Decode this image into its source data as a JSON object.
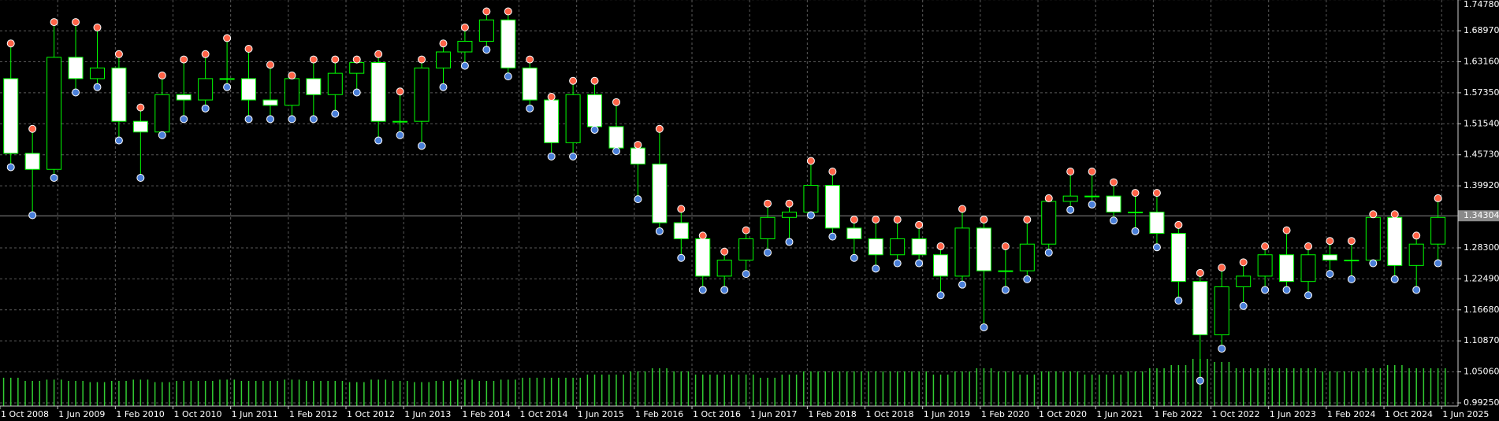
{
  "chart_data": {
    "type": "candlestick",
    "ylim": [
      0.9866,
      1.7473
    ],
    "yticks": [
      {
        "value": 1.7478,
        "label": "1.74780"
      },
      {
        "value": 1.6897,
        "label": "1.68970"
      },
      {
        "value": 1.6316,
        "label": "1.63160"
      },
      {
        "value": 1.5735,
        "label": "1.57350"
      },
      {
        "value": 1.5154,
        "label": "1.51540"
      },
      {
        "value": 1.4573,
        "label": "1.45730"
      },
      {
        "value": 1.3992,
        "label": "1.39920"
      },
      {
        "value": 1.283,
        "label": "1.28300"
      },
      {
        "value": 1.2249,
        "label": "1.22490"
      },
      {
        "value": 1.1668,
        "label": "1.16680"
      },
      {
        "value": 1.1087,
        "label": "1.10870"
      },
      {
        "value": 1.0506,
        "label": "1.05060"
      },
      {
        "value": 0.9925,
        "label": "0.99250"
      }
    ],
    "current_price": {
      "value": 1.34304,
      "label": "1.34304"
    },
    "xticks": [
      "1 Oct 2008",
      "1 Jun 2009",
      "1 Feb 2010",
      "1 Oct 2010",
      "1 Jun 2011",
      "1 Feb 2012",
      "1 Oct 2012",
      "1 Jun 2013",
      "1 Feb 2014",
      "1 Oct 2014",
      "1 Jun 2015",
      "1 Feb 2016",
      "1 Oct 2016",
      "1 Jun 2017",
      "1 Feb 2018",
      "1 Oct 2018",
      "1 Jun 2019",
      "1 Feb 2020",
      "1 Oct 2020",
      "1 Jun 2021",
      "1 Feb 2022",
      "1 Oct 2022",
      "1 Jun 2023",
      "1 Feb 2024",
      "1 Oct 2024",
      "1 Jun 2025"
    ],
    "grid": true,
    "x": [
      "1 Oct 2008",
      "1 Jan 2009",
      "1 Apr 2009",
      "1 Jul 2009",
      "1 Oct 2009",
      "1 Jan 2010",
      "1 Apr 2010",
      "1 Jul 2010",
      "1 Oct 2010",
      "1 Jan 2011",
      "1 Apr 2011",
      "1 Jul 2011",
      "1 Oct 2011",
      "1 Jan 2012",
      "1 Apr 2012",
      "1 Jul 2012",
      "1 Oct 2012",
      "1 Jan 2013",
      "1 Apr 2013",
      "1 Jul 2013",
      "1 Oct 2013",
      "1 Jan 2014",
      "1 Apr 2014",
      "1 Jul 2014",
      "1 Oct 2014",
      "1 Jan 2015",
      "1 Apr 2015",
      "1 Jul 2015",
      "1 Oct 2015",
      "1 Jan 2016",
      "1 Apr 2016",
      "1 Jul 2016",
      "1 Oct 2016",
      "1 Jan 2017",
      "1 Apr 2017",
      "1 Jul 2017",
      "1 Oct 2017",
      "1 Jan 2018",
      "1 Apr 2018",
      "1 Jul 2018",
      "1 Oct 2018",
      "1 Jan 2019",
      "1 Apr 2019",
      "1 Jul 2019",
      "1 Oct 2019",
      "1 Jan 2020",
      "1 Apr 2020",
      "1 Jul 2020",
      "1 Oct 2020",
      "1 Jan 2021",
      "1 Apr 2021",
      "1 Jul 2021",
      "1 Oct 2021",
      "1 Jan 2022",
      "1 Apr 2022",
      "1 Jul 2022",
      "1 Oct 2022",
      "1 Jan 2023",
      "1 Apr 2023",
      "1 Jul 2023",
      "1 Oct 2023",
      "1 Jan 2024",
      "1 Apr 2024",
      "1 Jul 2024",
      "1 Oct 2024",
      "1 Jan 2025",
      "1 Apr 2025"
    ],
    "open": [
      1.6,
      1.46,
      1.43,
      1.64,
      1.6,
      1.62,
      1.52,
      1.5,
      1.57,
      1.56,
      1.6,
      1.6,
      1.56,
      1.55,
      1.6,
      1.57,
      1.61,
      1.63,
      1.52,
      1.52,
      1.62,
      1.65,
      1.67,
      1.71,
      1.62,
      1.56,
      1.48,
      1.57,
      1.51,
      1.47,
      1.44,
      1.33,
      1.3,
      1.23,
      1.26,
      1.3,
      1.34,
      1.35,
      1.4,
      1.32,
      1.3,
      1.27,
      1.3,
      1.27,
      1.23,
      1.32,
      1.24,
      1.24,
      1.29,
      1.37,
      1.38,
      1.38,
      1.35,
      1.35,
      1.31,
      1.22,
      1.12,
      1.21,
      1.23,
      1.27,
      1.22,
      1.27,
      1.26,
      1.26,
      1.34,
      1.25,
      1.29
    ],
    "high": [
      1.66,
      1.5,
      1.7,
      1.7,
      1.69,
      1.64,
      1.54,
      1.6,
      1.63,
      1.64,
      1.67,
      1.65,
      1.62,
      1.6,
      1.63,
      1.63,
      1.63,
      1.64,
      1.57,
      1.63,
      1.66,
      1.69,
      1.72,
      1.72,
      1.63,
      1.56,
      1.59,
      1.59,
      1.55,
      1.47,
      1.5,
      1.35,
      1.3,
      1.27,
      1.31,
      1.36,
      1.36,
      1.44,
      1.42,
      1.33,
      1.33,
      1.33,
      1.32,
      1.28,
      1.35,
      1.33,
      1.28,
      1.33,
      1.37,
      1.42,
      1.42,
      1.4,
      1.38,
      1.38,
      1.32,
      1.23,
      1.24,
      1.25,
      1.28,
      1.31,
      1.28,
      1.29,
      1.29,
      1.34,
      1.34,
      1.3,
      1.37
    ],
    "low": [
      1.44,
      1.35,
      1.42,
      1.58,
      1.59,
      1.49,
      1.42,
      1.5,
      1.53,
      1.55,
      1.59,
      1.53,
      1.53,
      1.53,
      1.53,
      1.54,
      1.58,
      1.49,
      1.5,
      1.48,
      1.59,
      1.63,
      1.66,
      1.61,
      1.55,
      1.46,
      1.46,
      1.51,
      1.47,
      1.38,
      1.32,
      1.27,
      1.21,
      1.21,
      1.24,
      1.28,
      1.3,
      1.35,
      1.31,
      1.27,
      1.25,
      1.26,
      1.26,
      1.2,
      1.22,
      1.14,
      1.21,
      1.23,
      1.28,
      1.36,
      1.37,
      1.34,
      1.32,
      1.29,
      1.19,
      1.04,
      1.1,
      1.18,
      1.21,
      1.21,
      1.2,
      1.24,
      1.23,
      1.26,
      1.23,
      1.21,
      1.26
    ],
    "close": [
      1.46,
      1.43,
      1.64,
      1.6,
      1.62,
      1.52,
      1.5,
      1.57,
      1.56,
      1.6,
      1.6,
      1.56,
      1.55,
      1.6,
      1.57,
      1.61,
      1.63,
      1.52,
      1.52,
      1.62,
      1.65,
      1.67,
      1.71,
      1.62,
      1.56,
      1.48,
      1.57,
      1.51,
      1.47,
      1.44,
      1.33,
      1.3,
      1.23,
      1.26,
      1.3,
      1.34,
      1.35,
      1.4,
      1.32,
      1.3,
      1.27,
      1.3,
      1.27,
      1.23,
      1.32,
      1.24,
      1.24,
      1.29,
      1.37,
      1.38,
      1.38,
      1.35,
      1.35,
      1.31,
      1.22,
      1.12,
      1.21,
      1.23,
      1.27,
      1.22,
      1.27,
      1.26,
      1.26,
      1.34,
      1.25,
      1.29,
      1.34
    ],
    "volume": [
      45,
      40,
      42,
      40,
      38,
      40,
      42,
      38,
      40,
      40,
      42,
      40,
      40,
      42,
      40,
      40,
      38,
      42,
      40,
      38,
      40,
      42,
      40,
      42,
      45,
      45,
      45,
      50,
      50,
      55,
      60,
      55,
      50,
      50,
      50,
      45,
      50,
      55,
      55,
      55,
      55,
      55,
      55,
      50,
      55,
      60,
      55,
      50,
      55,
      55,
      50,
      50,
      55,
      60,
      65,
      75,
      70,
      60,
      60,
      60,
      60,
      55,
      55,
      60,
      65,
      60,
      60
    ],
    "volume_lim": [
      0,
      100
    ]
  }
}
